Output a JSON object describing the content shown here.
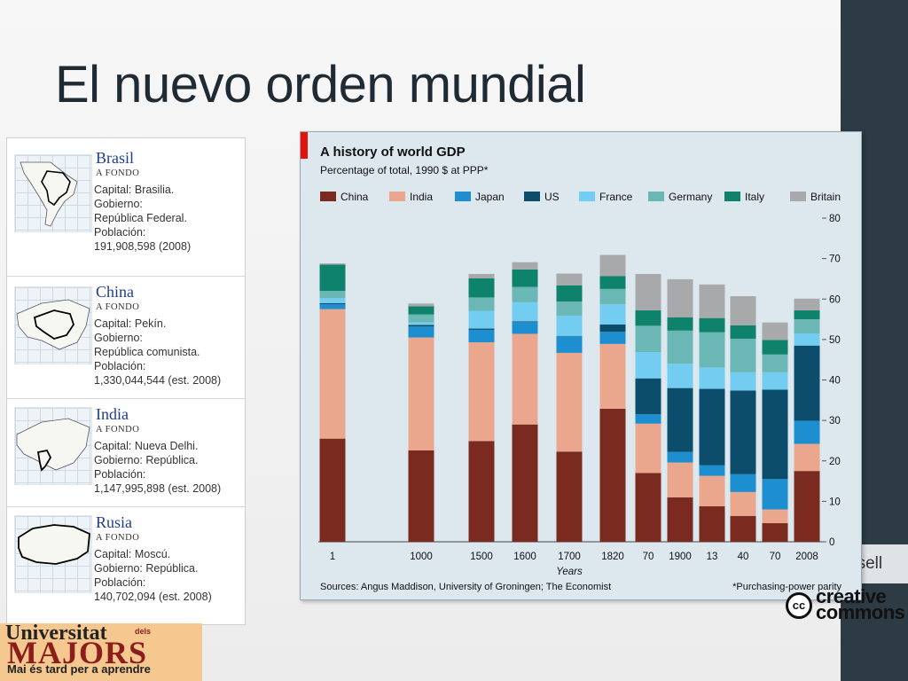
{
  "slide": {
    "title": "El nuevo orden mundial",
    "side_text": "usell"
  },
  "countries": [
    {
      "name": "Brasil",
      "subtitle": "A FONDO",
      "info": [
        "Capital: Brasilia.",
        "Gobierno:",
        "República Federal.",
        "Población:",
        "191,908,598 (2008)"
      ],
      "icon": "brazil-map-icon"
    },
    {
      "name": "China",
      "subtitle": "A FONDO",
      "info": [
        "Capital: Pekín.",
        "Gobierno:",
        "República comunista.",
        "Población:",
        "1,330,044,544 (est. 2008)"
      ],
      "icon": "china-map-icon"
    },
    {
      "name": "India",
      "subtitle": "A FONDO",
      "info": [
        "Capital: Nueva Delhi.",
        "Gobierno: República.",
        "Población:",
        "1,147,995,898 (est. 2008)"
      ],
      "icon": "india-map-icon"
    },
    {
      "name": "Rusia",
      "subtitle": "A FONDO",
      "info": [
        "Capital: Moscú.",
        "Gobierno: República.",
        "Población:",
        "140,702,094 (est. 2008)"
      ],
      "icon": "russia-map-icon"
    }
  ],
  "logo": {
    "line1": "Universitat",
    "dels": "dels",
    "line2": "MAJORS",
    "line3": "Mai és tard per a aprendre",
    "color": "#8b1d1d"
  },
  "cc_logo": {
    "symbol": "cc",
    "text1": "creative",
    "text2": "commons"
  },
  "chart_data": {
    "type": "bar",
    "stacked": true,
    "title": "A history of world GDP",
    "subtitle": "Percentage of total, 1990 $ at PPP*",
    "xlabel": "Years",
    "ylabel": "",
    "ylim": [
      0,
      80
    ],
    "yticks": [
      0,
      10,
      20,
      30,
      40,
      50,
      60,
      70,
      80
    ],
    "y_axis_side": "right",
    "grid": false,
    "legend_position": "top",
    "source": "Sources: Angus Maddison, University of Groningen; The Economist",
    "note": "*Purchasing-power parity",
    "categories": [
      "1",
      "1000",
      "1500",
      "1600",
      "1700",
      "1820",
      "70",
      "1900",
      "13",
      "40",
      "70",
      "2008"
    ],
    "series": [
      {
        "name": "China",
        "color": "#7b2a1f",
        "values": [
          25.5,
          22.6,
          24.9,
          29.0,
          22.3,
          32.9,
          17.0,
          11.0,
          8.8,
          6.4,
          4.6,
          17.5
        ]
      },
      {
        "name": "India",
        "color": "#eba78e",
        "values": [
          32.0,
          27.9,
          24.4,
          22.4,
          24.4,
          16.0,
          12.2,
          8.6,
          7.5,
          5.9,
          3.4,
          6.7
        ]
      },
      {
        "name": "Japan",
        "color": "#1d8fd1",
        "values": [
          1.2,
          2.7,
          3.1,
          2.9,
          4.1,
          3.0,
          2.3,
          2.6,
          2.6,
          4.4,
          7.5,
          5.7
        ]
      },
      {
        "name": "US",
        "color": "#0b4d6b",
        "values": [
          0.3,
          0.4,
          0.3,
          0.2,
          0.1,
          1.8,
          8.9,
          15.8,
          18.9,
          20.7,
          22.1,
          18.6
        ]
      },
      {
        "name": "France",
        "color": "#72cdf0",
        "values": [
          1.2,
          0.6,
          4.4,
          4.7,
          5.0,
          5.0,
          6.5,
          6.0,
          5.3,
          4.5,
          4.3,
          3.0
        ]
      },
      {
        "name": "Germany",
        "color": "#6bb7b6",
        "values": [
          1.8,
          2.0,
          3.3,
          3.8,
          3.5,
          3.8,
          6.5,
          8.2,
          8.7,
          8.3,
          4.4,
          3.5
        ]
      },
      {
        "name": "Italy",
        "color": "#0f826b",
        "values": [
          6.5,
          2.0,
          4.7,
          4.3,
          4.0,
          3.2,
          3.8,
          3.3,
          3.5,
          3.3,
          3.6,
          2.2
        ]
      },
      {
        "name": "Britain",
        "color": "#a7a9ab",
        "values": [
          0.3,
          0.7,
          1.1,
          1.8,
          2.9,
          5.2,
          9.0,
          9.4,
          8.3,
          7.2,
          4.3,
          2.9
        ]
      }
    ]
  }
}
